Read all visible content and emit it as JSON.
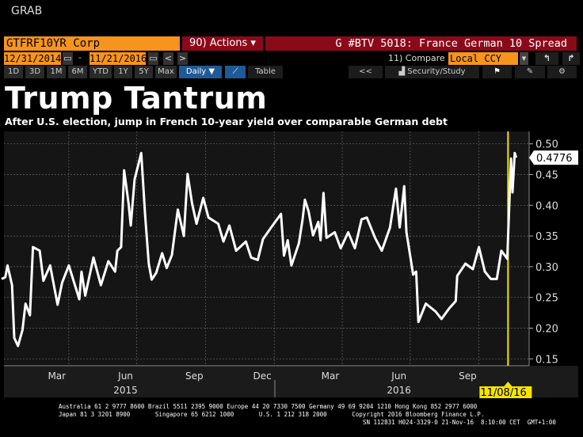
{
  "app": {
    "grab": "GRAB"
  },
  "toolbar": {
    "ticker": "GTFRF10YR Corp",
    "actions": "90) Actions ▾",
    "chart_name": "G #BTV 5018: France German 10 Spread",
    "start_date": "12/31/2014",
    "date_sep": "-",
    "end_date": "11/21/2016",
    "prev": "<",
    "next": ">",
    "compare_label": "11) Compare",
    "currency": "Local CCY",
    "periods": [
      "1D",
      "3D",
      "1M",
      "6M",
      "YTD",
      "1Y",
      "5Y",
      "Max"
    ],
    "frequency": "Daily ▼",
    "table": "Table",
    "collapse": "<<",
    "security_study": "Security/Study"
  },
  "chart_data": {
    "type": "line",
    "title": "Trump Tantrum",
    "subtitle": "After U.S. election, jump in French 10-year yield over comparable German debt",
    "x_unit": "days since 12/31/2014",
    "ylim": [
      0.14,
      0.52
    ],
    "yticks": [
      "0.50",
      "0.45",
      "0.40",
      "0.35",
      "0.30",
      "0.25",
      "0.20",
      "0.15"
    ],
    "ytick_values": [
      0.5,
      0.45,
      0.4,
      0.35,
      0.3,
      0.25,
      0.2,
      0.15
    ],
    "xtick_labels": [
      "Mar",
      "Jun",
      "Sep",
      "Dec",
      "Mar",
      "Jun",
      "Sep"
    ],
    "xtick_days": [
      74,
      166,
      258,
      349,
      440,
      532,
      624
    ],
    "year_labels": [
      "2015",
      "2016"
    ],
    "year_days": [
      166,
      532
    ],
    "grid": true,
    "last_value": "0.4776",
    "marker_label": "11/08/16",
    "marker_day": 678,
    "line_color": "#ffffff",
    "marker_color": "#f5e400",
    "points": [
      [
        0,
        0.28
      ],
      [
        5,
        0.283
      ],
      [
        8,
        0.302
      ],
      [
        14,
        0.27
      ],
      [
        17,
        0.184
      ],
      [
        22,
        0.171
      ],
      [
        28,
        0.197
      ],
      [
        32,
        0.24
      ],
      [
        38,
        0.221
      ],
      [
        42,
        0.332
      ],
      [
        51,
        0.326
      ],
      [
        56,
        0.277
      ],
      [
        65,
        0.302
      ],
      [
        75,
        0.238
      ],
      [
        81,
        0.274
      ],
      [
        90,
        0.302
      ],
      [
        104,
        0.247
      ],
      [
        107,
        0.292
      ],
      [
        112,
        0.253
      ],
      [
        123,
        0.315
      ],
      [
        133,
        0.27
      ],
      [
        143,
        0.309
      ],
      [
        152,
        0.292
      ],
      [
        155,
        0.326
      ],
      [
        160,
        0.332
      ],
      [
        164,
        0.457
      ],
      [
        170,
        0.403
      ],
      [
        173,
        0.367
      ],
      [
        178,
        0.442
      ],
      [
        187,
        0.485
      ],
      [
        192,
        0.386
      ],
      [
        197,
        0.305
      ],
      [
        201,
        0.279
      ],
      [
        207,
        0.29
      ],
      [
        215,
        0.322
      ],
      [
        221,
        0.298
      ],
      [
        228,
        0.319
      ],
      [
        236,
        0.393
      ],
      [
        244,
        0.35
      ],
      [
        249,
        0.451
      ],
      [
        255,
        0.403
      ],
      [
        261,
        0.37
      ],
      [
        270,
        0.412
      ],
      [
        277,
        0.38
      ],
      [
        290,
        0.37
      ],
      [
        297,
        0.341
      ],
      [
        305,
        0.367
      ],
      [
        314,
        0.326
      ],
      [
        327,
        0.341
      ],
      [
        334,
        0.315
      ],
      [
        343,
        0.311
      ],
      [
        350,
        0.345
      ],
      [
        361,
        0.364
      ],
      [
        374,
        0.386
      ],
      [
        378,
        0.318
      ],
      [
        383,
        0.343
      ],
      [
        388,
        0.302
      ],
      [
        398,
        0.338
      ],
      [
        403,
        0.377
      ],
      [
        406,
        0.409
      ],
      [
        411,
        0.39
      ],
      [
        417,
        0.351
      ],
      [
        424,
        0.373
      ],
      [
        427,
        0.343
      ],
      [
        431,
        0.42
      ],
      [
        435,
        0.347
      ],
      [
        446,
        0.356
      ],
      [
        454,
        0.33
      ],
      [
        464,
        0.356
      ],
      [
        473,
        0.33
      ],
      [
        482,
        0.377
      ],
      [
        489,
        0.38
      ],
      [
        500,
        0.347
      ],
      [
        509,
        0.326
      ],
      [
        520,
        0.364
      ],
      [
        528,
        0.427
      ],
      [
        533,
        0.364
      ],
      [
        539,
        0.431
      ],
      [
        542,
        0.356
      ],
      [
        547,
        0.318
      ],
      [
        551,
        0.287
      ],
      [
        555,
        0.292
      ],
      [
        558,
        0.21
      ],
      [
        568,
        0.24
      ],
      [
        581,
        0.227
      ],
      [
        589,
        0.215
      ],
      [
        599,
        0.232
      ],
      [
        608,
        0.244
      ],
      [
        610,
        0.285
      ],
      [
        621,
        0.305
      ],
      [
        631,
        0.296
      ],
      [
        639,
        0.332
      ],
      [
        647,
        0.292
      ],
      [
        655,
        0.28
      ],
      [
        663,
        0.28
      ],
      [
        669,
        0.326
      ],
      [
        677,
        0.313
      ],
      [
        682,
        0.476
      ],
      [
        684,
        0.421
      ],
      [
        687,
        0.485
      ],
      [
        689,
        0.4776
      ]
    ]
  },
  "footer": {
    "line1": "Australia 61 2 9777 8600 Brazil 5511 2395 9000 Europe 44 20 7330 7500 Germany 49 69 9204 1210 Hong Kong 852 2977 6000",
    "line2": "Japan 81 3 3201 8900       Singapore 65 6212 1000       U.S. 1 212 318 2000       Copyright 2016 Bloomberg Finance L.P.",
    "line3": "SN 112831 H024-3329-0 21-Nov-16  8:10:00 CET  GMT+1:00"
  }
}
